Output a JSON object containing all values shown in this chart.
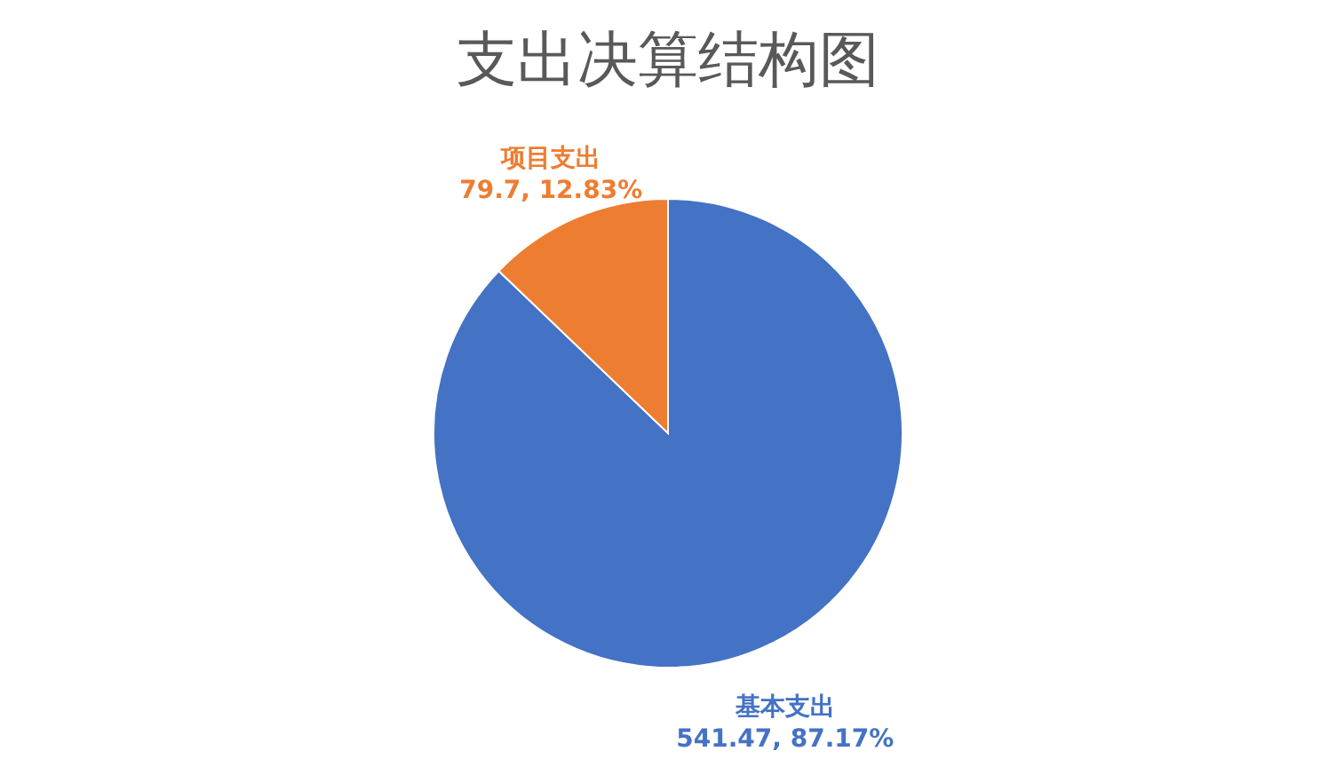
{
  "chart_data": {
    "type": "pie",
    "title": "支出决算结构图",
    "categories": [
      "基本支出",
      "项目支出"
    ],
    "values": [
      541.47,
      79.7
    ],
    "colors": [
      "#4472c4",
      "#ed7d31"
    ],
    "value_labels": [
      "541.47, 87.17%",
      "79.7, 12.83%"
    ],
    "legend": false
  }
}
